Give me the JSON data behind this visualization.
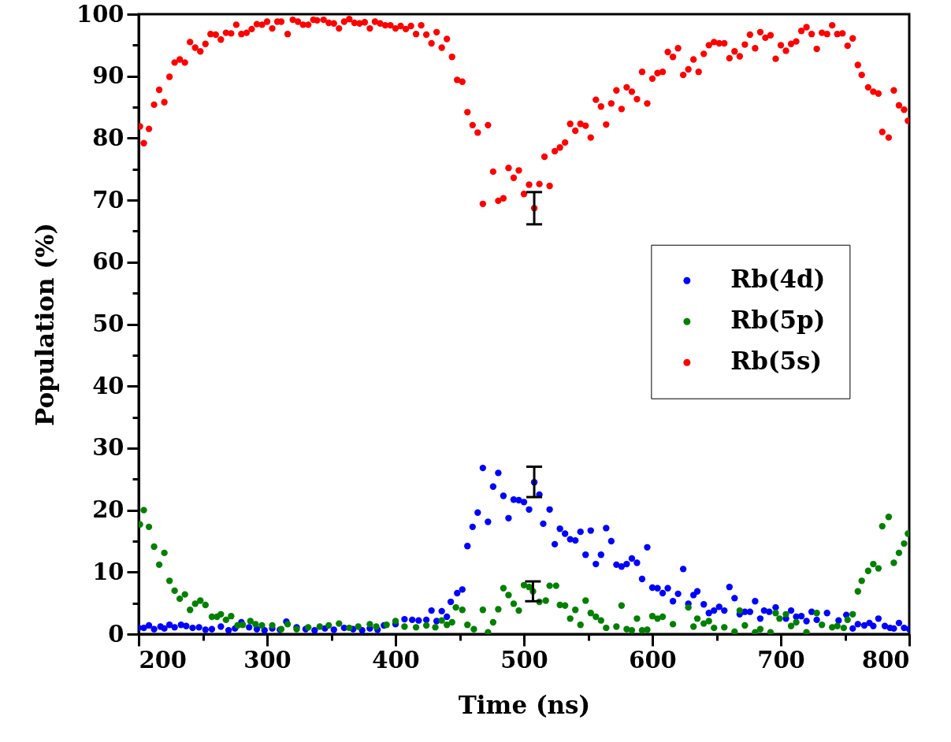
{
  "chart_data": {
    "type": "scatter",
    "xlabel": "Time (ns)",
    "ylabel": "Population (%)",
    "xlim": [
      200,
      800
    ],
    "ylim": [
      0,
      100
    ],
    "xticks": [
      200,
      {
        "value": 250,
        "label": null
      },
      300,
      {
        "value": 350,
        "label": null
      },
      400,
      {
        "value": 450,
        "label": null
      },
      500,
      {
        "value": 550,
        "label": null
      },
      600,
      {
        "value": 650,
        "label": null
      },
      700,
      {
        "value": 750,
        "label": null
      },
      800
    ],
    "yticks": [
      0,
      {
        "value": 5,
        "label": null
      },
      10,
      {
        "value": 15,
        "label": null
      },
      20,
      {
        "value": 25,
        "label": null
      },
      30,
      {
        "value": 35,
        "label": null
      },
      40,
      {
        "value": 45,
        "label": null
      },
      50,
      {
        "value": 55,
        "label": null
      },
      60,
      {
        "value": 65,
        "label": null
      },
      70,
      {
        "value": 75,
        "label": null
      },
      80,
      {
        "value": 85,
        "label": null
      },
      90,
      {
        "value": 95,
        "label": null
      },
      100
    ],
    "marker": "circle",
    "legend": "right",
    "series": [
      {
        "name": "Rb(4d)",
        "color": "#0000ff",
        "x": [
          200,
          204,
          208,
          212,
          217,
          220,
          224,
          228,
          233,
          237,
          242,
          247,
          252,
          257,
          264,
          270,
          275,
          280,
          286,
          292,
          298,
          304,
          310,
          315,
          323,
          330,
          337,
          345,
          352,
          360,
          367,
          374,
          380,
          386,
          391,
          400,
          407,
          413,
          418,
          424,
          428,
          432,
          436,
          440,
          443,
          448,
          452,
          456,
          460,
          464,
          468,
          472,
          476,
          480,
          484,
          488,
          492,
          496,
          500,
          504,
          508,
          512,
          515,
          520,
          524,
          528,
          532,
          536,
          540,
          544,
          548,
          552,
          556,
          560,
          564,
          568,
          572,
          576,
          580,
          584,
          588,
          592,
          596,
          600,
          604,
          608,
          612,
          616,
          620,
          624,
          628,
          632,
          635,
          640,
          644,
          648,
          652,
          656,
          660,
          664,
          668,
          672,
          676,
          680,
          684,
          687,
          691,
          696,
          704,
          708,
          712,
          716,
          720,
          724,
          728,
          736,
          745,
          751,
          756,
          760,
          765,
          769,
          772,
          776,
          781,
          785,
          788,
          792,
          796,
          800
        ],
        "values": [
          1,
          1,
          1.4,
          0.8,
          1.2,
          0.9,
          1.5,
          1.1,
          1.5,
          1.3,
          1,
          1.1,
          0.7,
          0.8,
          1.2,
          0.6,
          0.9,
          1.9,
          1.1,
          0.8,
          0.6,
          0.9,
          0.7,
          2,
          1.1,
          0.8,
          0.6,
          0.9,
          0.7,
          1,
          0.8,
          0.6,
          0.9,
          0.7,
          1.4,
          1.6,
          2.4,
          2.3,
          2.2,
          2.3,
          3.8,
          2.1,
          3.7,
          2.8,
          5.2,
          6.6,
          7.2,
          14.2,
          17.3,
          19.6,
          26.8,
          18.1,
          23.8,
          26,
          22.3,
          18.7,
          21.7,
          21.6,
          21.3,
          20.1,
          24.5,
          22.5,
          17.8,
          20.1,
          14.5,
          17,
          16.2,
          15.3,
          15.1,
          16.5,
          12.8,
          16.7,
          11.3,
          12.8,
          17.1,
          15,
          11.2,
          10.9,
          11.3,
          12.2,
          11.5,
          8.9,
          14,
          7.5,
          7.4,
          6.6,
          7.4,
          5.3,
          6.5,
          10.5,
          4.9,
          6.3,
          6.9,
          4.8,
          3.4,
          3.8,
          4.4,
          3.8,
          7.6,
          5.8,
          3.2,
          3.6,
          3.6,
          5.3,
          2.5,
          3.8,
          3.6,
          4.3,
          2.5,
          3.8,
          2.8,
          2.9,
          2.1,
          3.6,
          2.3,
          3.4,
          2.2,
          3.1,
          0.9,
          1.6,
          1.4,
          1.8,
          1.3,
          2.5,
          1.3,
          1,
          0.9,
          1.8,
          1,
          0.8
        ],
        "errors": [
          null,
          null,
          null,
          null,
          null,
          null,
          null,
          null,
          null,
          null,
          null,
          null,
          null,
          null,
          null,
          null,
          null,
          null,
          null,
          null,
          null,
          null,
          null,
          null,
          null,
          null,
          null,
          null,
          null,
          null,
          null,
          null,
          null,
          null,
          null,
          null,
          null,
          null,
          null,
          null,
          null,
          null,
          null,
          null,
          null,
          null,
          null,
          null,
          null,
          null,
          null,
          null,
          null,
          null,
          null,
          null,
          null,
          null,
          null,
          null,
          [
            22.1,
            27.0
          ],
          null,
          null,
          null,
          null,
          null,
          null,
          null,
          null,
          null,
          null,
          null,
          null,
          null,
          null,
          null,
          null,
          null,
          null,
          null,
          null,
          null,
          null,
          null,
          null,
          null,
          null,
          null,
          null,
          null,
          null,
          null,
          null,
          null,
          null,
          null,
          null,
          null,
          null,
          null,
          null,
          null,
          null,
          null,
          null,
          null,
          null,
          null,
          null,
          null,
          null,
          null,
          null,
          null,
          null,
          null,
          null,
          null,
          null,
          null,
          null,
          null,
          null,
          null,
          null,
          null,
          null,
          null,
          null,
          null
        ]
      },
      {
        "name": "Rb(5p)",
        "color": "#008000",
        "x": [
          201,
          204,
          208,
          212,
          216,
          220,
          224,
          228,
          232,
          236,
          240,
          244,
          248,
          252,
          257,
          261,
          264,
          268,
          272,
          277,
          281,
          287,
          291,
          296,
          304,
          311,
          316,
          323,
          332,
          341,
          348,
          356,
          364,
          371,
          380,
          385,
          393,
          400,
          407,
          416,
          424,
          431,
          436,
          440,
          444,
          447,
          452,
          456,
          461,
          468,
          472,
          476,
          480,
          484,
          488,
          492,
          496,
          500,
          504,
          507,
          512,
          517,
          520,
          525,
          528,
          532,
          536,
          540,
          544,
          548,
          552,
          556,
          560,
          564,
          572,
          576,
          580,
          584,
          588,
          592,
          596,
          600,
          604,
          608,
          616,
          628,
          632,
          635,
          640,
          644,
          648,
          656,
          664,
          668,
          672,
          680,
          684,
          692,
          696,
          699,
          704,
          708,
          712,
          720,
          728,
          732,
          740,
          744,
          749,
          752,
          756,
          760,
          763,
          768,
          772,
          776,
          779,
          784,
          788,
          792,
          796,
          799
        ],
        "values": [
          17.7,
          20,
          17.3,
          14.1,
          11.2,
          13.1,
          8.6,
          7,
          5.7,
          6.4,
          3.9,
          4.9,
          5.4,
          4.7,
          2.8,
          2.8,
          3.2,
          2.3,
          2.9,
          1.4,
          1.5,
          2.1,
          1.6,
          1.4,
          1.4,
          0.8,
          1.6,
          0.8,
          1.1,
          1.2,
          1.4,
          1.7,
          1,
          1.2,
          1.6,
          1.2,
          1.5,
          2.1,
          1.2,
          1.1,
          1.4,
          1.1,
          2.2,
          1.5,
          1.9,
          4.3,
          3.9,
          1.5,
          0.8,
          3.9,
          0.3,
          1.9,
          4,
          7.4,
          6.3,
          4.9,
          3.8,
          7.9,
          7.6,
          6.9,
          5.2,
          5.4,
          7.8,
          7.8,
          4.7,
          4.6,
          2.5,
          3.9,
          1.5,
          5.4,
          3.4,
          2.8,
          2.2,
          1,
          1.2,
          4.6,
          0.8,
          0.6,
          2.5,
          0.6,
          0.7,
          2.9,
          2.5,
          2.8,
          1.6,
          4.3,
          1.2,
          2.5,
          1.7,
          2.1,
          1,
          1.1,
          0.4,
          3.8,
          1.4,
          0.3,
          0.8,
          0.3,
          3.4,
          2.5,
          3.2,
          1.3,
          1.9,
          0.3,
          3.4,
          1.5,
          1.1,
          1.3,
          1,
          2.3,
          3.2,
          6.9,
          8.6,
          10.2,
          11.3,
          10.6,
          17.4,
          18.9,
          11.5,
          13.1,
          14.6,
          16.2
        ],
        "errors": [
          null,
          null,
          null,
          null,
          null,
          null,
          null,
          null,
          null,
          null,
          null,
          null,
          null,
          null,
          null,
          null,
          null,
          null,
          null,
          null,
          null,
          null,
          null,
          null,
          null,
          null,
          null,
          null,
          null,
          null,
          null,
          null,
          null,
          null,
          null,
          null,
          null,
          null,
          null,
          null,
          null,
          null,
          null,
          null,
          null,
          null,
          null,
          null,
          null,
          null,
          null,
          null,
          null,
          null,
          null,
          null,
          null,
          null,
          null,
          [
            5.3,
            8.5
          ],
          null,
          null,
          null,
          null,
          null,
          null,
          null,
          null,
          null,
          null,
          null,
          null,
          null,
          null,
          null,
          null,
          null,
          null,
          null,
          null,
          null,
          null,
          null,
          null,
          null,
          null,
          null,
          null,
          null,
          null,
          null,
          null,
          null,
          null,
          null,
          null,
          null,
          null,
          null,
          null,
          null,
          null,
          null,
          null,
          null,
          null,
          null,
          null,
          null,
          null,
          null,
          null,
          null,
          null,
          null,
          null,
          null,
          null,
          null,
          null,
          null,
          null
        ]
      },
      {
        "name": "Rb(5s)",
        "color": "#ff0000",
        "x": [
          201,
          204,
          208,
          212,
          216,
          220,
          224,
          228,
          232,
          236,
          240,
          244,
          248,
          252,
          256,
          260,
          264,
          268,
          272,
          276,
          280,
          284,
          288,
          292,
          296,
          300,
          304,
          308,
          311,
          316,
          320,
          324,
          328,
          332,
          336,
          339,
          344,
          348,
          352,
          356,
          360,
          364,
          368,
          372,
          376,
          380,
          384,
          388,
          392,
          396,
          400,
          404,
          408,
          412,
          416,
          420,
          424,
          428,
          432,
          436,
          440,
          444,
          448,
          452,
          456,
          460,
          464,
          468,
          472,
          476,
          480,
          484,
          488,
          492,
          496,
          500,
          504,
          508,
          512,
          516,
          520,
          524,
          528,
          532,
          536,
          540,
          544,
          548,
          552,
          556,
          560,
          564,
          568,
          572,
          576,
          580,
          584,
          588,
          592,
          596,
          600,
          604,
          608,
          612,
          616,
          620,
          624,
          628,
          632,
          636,
          640,
          644,
          648,
          652,
          656,
          660,
          664,
          668,
          672,
          676,
          680,
          684,
          688,
          692,
          696,
          700,
          704,
          708,
          712,
          716,
          720,
          724,
          728,
          732,
          736,
          740,
          744,
          748,
          752,
          756,
          760,
          763,
          768,
          772,
          776,
          779,
          784,
          788,
          792,
          796,
          799
        ],
        "values": [
          81.9,
          79.2,
          81.5,
          85.4,
          87.8,
          85.8,
          89.9,
          92.2,
          92.7,
          92.2,
          95.5,
          94.6,
          94,
          95.2,
          96.8,
          96.7,
          95.9,
          97,
          96.9,
          98.3,
          96.8,
          97,
          97.6,
          98.4,
          98.3,
          98.8,
          97.7,
          98.8,
          98.8,
          96.8,
          99.1,
          98.8,
          98.3,
          98.3,
          99.1,
          99,
          99.1,
          98.6,
          98.5,
          97.7,
          98.8,
          99.2,
          98.6,
          98.5,
          98.7,
          97.7,
          98.8,
          98.5,
          98.2,
          98.2,
          97.7,
          98.1,
          97.6,
          98.1,
          96.8,
          98.2,
          96.7,
          95.3,
          97.1,
          94.6,
          96,
          93.1,
          89.4,
          89.1,
          84.2,
          82.1,
          80.9,
          69.4,
          82.1,
          74.6,
          69.9,
          70.3,
          75.2,
          73.6,
          74.8,
          71,
          72.5,
          68.7,
          72.6,
          77,
          72.3,
          77.9,
          78.5,
          79.3,
          82.3,
          81.2,
          82.3,
          82,
          80.1,
          86.2,
          85.1,
          82.2,
          85.6,
          87.7,
          84.7,
          88.2,
          87.5,
          86.3,
          90.7,
          85.6,
          89.6,
          90.5,
          90.7,
          93.9,
          93.1,
          94.5,
          90.2,
          91.1,
          92.7,
          90.7,
          93.6,
          95,
          95.5,
          95.3,
          95.3,
          92.9,
          94,
          93.2,
          95.1,
          96.7,
          94.5,
          97.1,
          96.2,
          96.6,
          92.8,
          95,
          94.1,
          95.2,
          95.6,
          97.3,
          97.9,
          96.8,
          94.4,
          97,
          96.8,
          98.2,
          96.8,
          96.9,
          94.9,
          96.1,
          91.8,
          90.2,
          88.2,
          87.5,
          87.2,
          81,
          80.1,
          87.7,
          85.3,
          84.6,
          82.8
        ],
        "errors": [
          null,
          null,
          null,
          null,
          null,
          null,
          null,
          null,
          null,
          null,
          null,
          null,
          null,
          null,
          null,
          null,
          null,
          null,
          null,
          null,
          null,
          null,
          null,
          null,
          null,
          null,
          null,
          null,
          null,
          null,
          null,
          null,
          null,
          null,
          null,
          null,
          null,
          null,
          null,
          null,
          null,
          null,
          null,
          null,
          null,
          null,
          null,
          null,
          null,
          null,
          null,
          null,
          null,
          null,
          null,
          null,
          null,
          null,
          null,
          null,
          null,
          null,
          null,
          null,
          null,
          null,
          null,
          null,
          null,
          null,
          null,
          null,
          null,
          null,
          null,
          null,
          null,
          [
            66.1,
            71.3
          ],
          null,
          null,
          null,
          null,
          null,
          null,
          null,
          null,
          null,
          null,
          null,
          null,
          null,
          null,
          null,
          null,
          null,
          null,
          null,
          null,
          null,
          null,
          null,
          null,
          null,
          null,
          null,
          null,
          null,
          null,
          null,
          null,
          null,
          null,
          null,
          null,
          null,
          null,
          null,
          null,
          null,
          null,
          null,
          null,
          null,
          null,
          null,
          null,
          null,
          null,
          null,
          null,
          null,
          null,
          null,
          null,
          null,
          null,
          null,
          null,
          null,
          null,
          null,
          null,
          null,
          null,
          null,
          null,
          null,
          null,
          null,
          null,
          null
        ]
      }
    ]
  }
}
